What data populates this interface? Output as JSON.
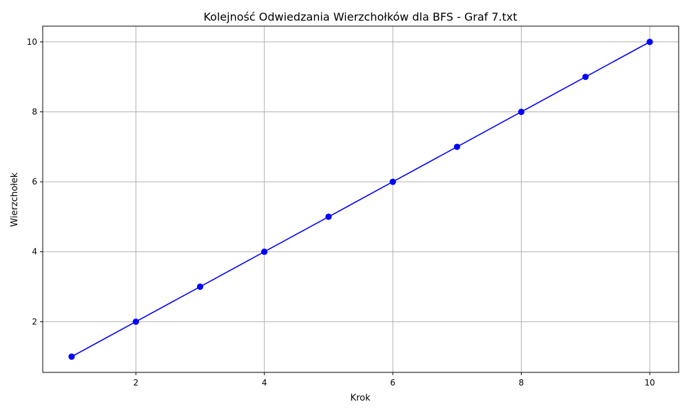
{
  "chart_data": {
    "type": "line",
    "title": "Kolejność Odwiedzania Wierzchołków dla BFS - Graf 7.txt",
    "xlabel": "Krok",
    "ylabel": "Wierzchołek",
    "x": [
      1,
      2,
      3,
      4,
      5,
      6,
      7,
      8,
      9,
      10
    ],
    "series": [
      {
        "values": [
          1,
          2,
          3,
          4,
          5,
          6,
          7,
          8,
          9,
          10
        ],
        "color": "#0000ff",
        "marker": "circle"
      }
    ],
    "xlim": [
      0.55,
      10.45
    ],
    "ylim": [
      0.55,
      10.45
    ],
    "xticks": [
      2,
      4,
      6,
      8,
      10
    ],
    "yticks": [
      2,
      4,
      6,
      8,
      10
    ],
    "grid": true,
    "grid_color": "#b0b0b0"
  }
}
